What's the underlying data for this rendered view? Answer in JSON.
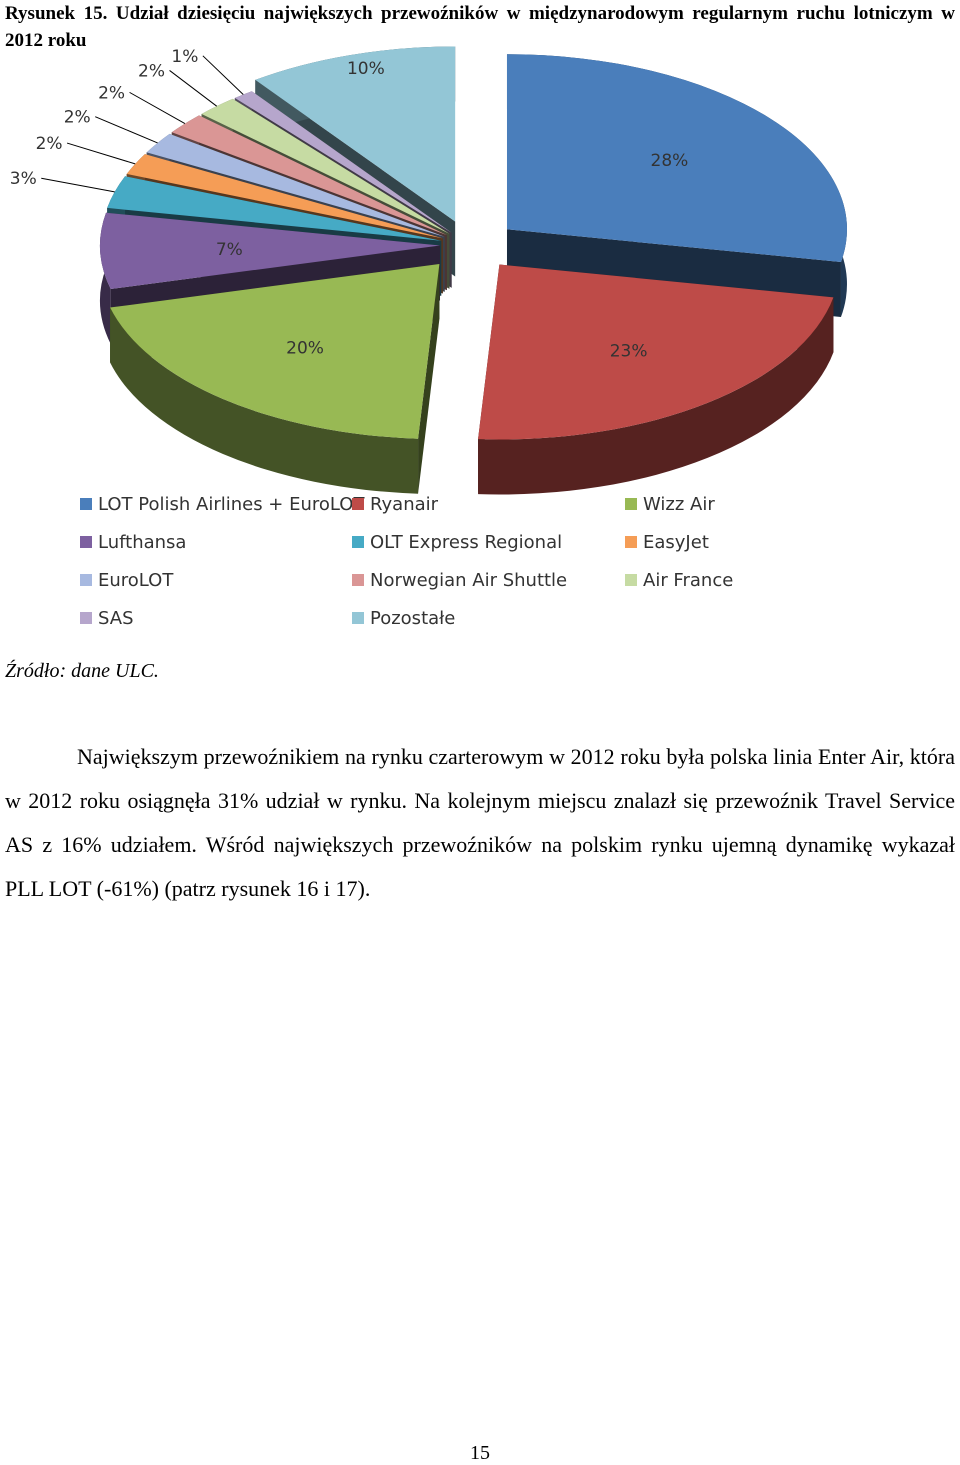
{
  "caption": "Rysunek 15. Udział dziesięciu największych przewoźników w międzynarodowym regularnym ruchu lotniczym w 2012 roku",
  "chart_data": {
    "type": "pie",
    "style": "3d-exploded",
    "legend_position": "bottom",
    "series": [
      {
        "name": "LOT Polish Airlines + EuroLOT",
        "value": 28,
        "label": "28%",
        "color": "#4A7EBB"
      },
      {
        "name": "Ryanair",
        "value": 23,
        "label": "23%",
        "color": "#BE4B48"
      },
      {
        "name": "Wizz Air",
        "value": 20,
        "label": "20%",
        "color": "#98B954"
      },
      {
        "name": "Lufthansa",
        "value": 7,
        "label": "7%",
        "color": "#7D60A0"
      },
      {
        "name": "OLT Express Regional",
        "value": 3,
        "label": "3%",
        "color": "#46AAC5"
      },
      {
        "name": "EasyJet",
        "value": 2,
        "label": "2%",
        "color": "#F59D56"
      },
      {
        "name": "EuroLOT",
        "value": 2,
        "label": "2%",
        "color": "#A7B9E0"
      },
      {
        "name": "Norwegian Air Shuttle",
        "value": 2,
        "label": "2%",
        "color": "#DA9695"
      },
      {
        "name": "Air France",
        "value": 2,
        "label": "2%",
        "color": "#C6DBA3"
      },
      {
        "name": "SAS",
        "value": 1,
        "label": "1%",
        "color": "#B6A6CC"
      },
      {
        "name": "Pozostałe",
        "value": 10,
        "label": "10%",
        "color": "#93C6D6"
      }
    ]
  },
  "legend": [
    {
      "label": "LOT Polish Airlines + EuroLOT",
      "color": "#4A7EBB"
    },
    {
      "label": "Ryanair",
      "color": "#BE4B48"
    },
    {
      "label": "Wizz Air",
      "color": "#98B954"
    },
    {
      "label": "Lufthansa",
      "color": "#7D60A0"
    },
    {
      "label": "OLT Express Regional",
      "color": "#46AAC5"
    },
    {
      "label": "EasyJet",
      "color": "#F59D56"
    },
    {
      "label": "EuroLOT",
      "color": "#A7B9E0"
    },
    {
      "label": "Norwegian Air Shuttle",
      "color": "#DA9695"
    },
    {
      "label": "Air France",
      "color": "#C6DBA3"
    },
    {
      "label": "SAS",
      "color": "#B6A6CC"
    },
    {
      "label": "Pozostałe",
      "color": "#93C6D6"
    }
  ],
  "source": "Źródło: dane ULC.",
  "paragraph": "Największym przewoźnikiem na rynku czarterowym w 2012 roku była polska linia Enter Air, która w 2012 roku osiągnęła 31% udział w rynku. Na kolejnym miejscu znalazł się przewoźnik Travel Service AS z 16% udziałem. Wśród największych przewoźników na polskim rynku ujemną dynamikę wykazał PLL LOT (-61%) (patrz rysunek 16 i 17).",
  "page_number": "15"
}
